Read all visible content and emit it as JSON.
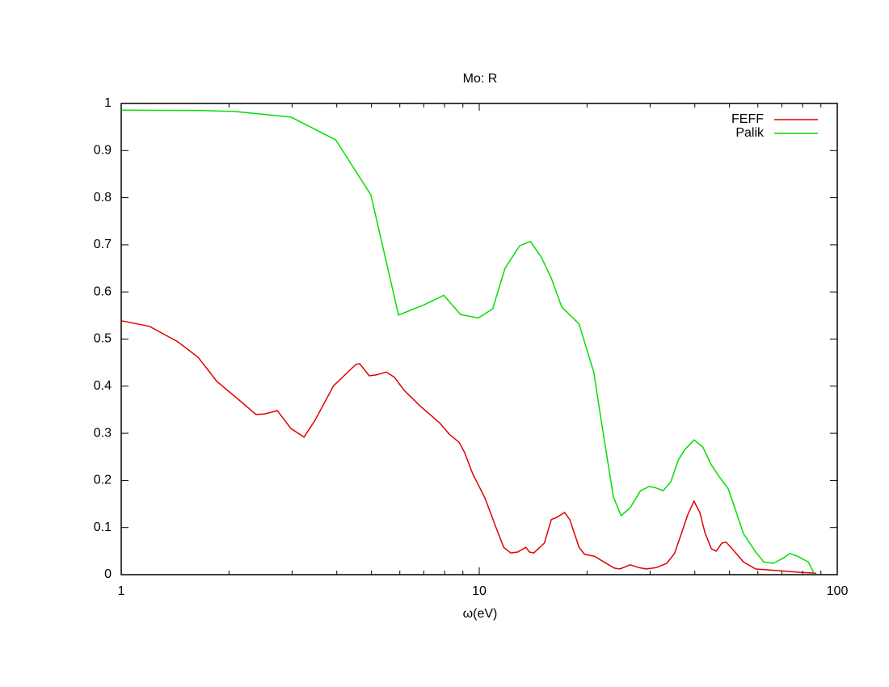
{
  "chart_data": {
    "type": "line",
    "title": "Mo: R",
    "x_label": "ω(eV)",
    "x_scale": "log",
    "xlim": [
      1,
      100
    ],
    "xticks": [
      1,
      10,
      100
    ],
    "xminorticks": [
      2,
      3,
      4,
      5,
      6,
      7,
      8,
      9,
      20,
      30,
      40,
      50,
      60,
      70,
      80,
      90
    ],
    "ylim": [
      0,
      1
    ],
    "yticks": [
      0,
      0.1,
      0.2,
      0.3,
      0.4,
      0.5,
      0.6,
      0.7,
      0.8,
      0.9,
      1
    ],
    "grid": false,
    "legend": "top-right",
    "series": [
      {
        "name": "FEFF",
        "color": "#e00000",
        "x": [
          1,
          1.2,
          1.44,
          1.64,
          1.85,
          2.07,
          2.38,
          2.51,
          2.73,
          2.98,
          3.24,
          3.48,
          3.92,
          4.52,
          4.63,
          4.93,
          5.17,
          5.5,
          5.79,
          6.17,
          6.84,
          7.75,
          8.25,
          8.78,
          9.1,
          9.59,
          10.37,
          11.1,
          11.7,
          12.25,
          12.8,
          13.5,
          13.8,
          14.2,
          15.2,
          15.9,
          16.5,
          17.3,
          17.9,
          19.0,
          19.7,
          21.0,
          22.4,
          23.8,
          24.7,
          26.4,
          27.9,
          29.3,
          31.2,
          33.4,
          35.1,
          36.7,
          38.2,
          39.8,
          41.3,
          42.7,
          44.5,
          45.9,
          47.6,
          48.9,
          50.6,
          54.7,
          59.2,
          67.3,
          78.7,
          87.3
        ],
        "values": [
          0.539,
          0.527,
          0.494,
          0.461,
          0.41,
          0.379,
          0.34,
          0.341,
          0.348,
          0.31,
          0.292,
          0.328,
          0.401,
          0.446,
          0.448,
          0.422,
          0.424,
          0.43,
          0.419,
          0.391,
          0.358,
          0.322,
          0.298,
          0.281,
          0.259,
          0.214,
          0.163,
          0.103,
          0.058,
          0.046,
          0.048,
          0.058,
          0.048,
          0.046,
          0.067,
          0.117,
          0.122,
          0.132,
          0.117,
          0.058,
          0.043,
          0.039,
          0.026,
          0.014,
          0.012,
          0.021,
          0.015,
          0.012,
          0.015,
          0.024,
          0.045,
          0.087,
          0.127,
          0.156,
          0.132,
          0.089,
          0.055,
          0.05,
          0.067,
          0.069,
          0.057,
          0.027,
          0.012,
          0.009,
          0.005,
          0.003
        ]
      },
      {
        "name": "Palik",
        "color": "#00e000",
        "x": [
          1,
          1.68,
          2.07,
          2.98,
          3.97,
          4.98,
          5.95,
          7.03,
          7.96,
          8.87,
          9.95,
          10.9,
          11.8,
          12.97,
          13.9,
          14.9,
          15.9,
          17.0,
          19.0,
          20.9,
          21.9,
          23.7,
          24.9,
          26.4,
          28.2,
          29.8,
          30.9,
          32.6,
          34.3,
          36.0,
          37.6,
          39.8,
          42.1,
          44.5,
          46.8,
          49.6,
          51.9,
          54.7,
          59.2,
          62.3,
          66.2,
          71.0,
          73.7,
          77.5,
          83.0,
          86.1
        ],
        "values": [
          0.986,
          0.985,
          0.983,
          0.971,
          0.923,
          0.806,
          0.551,
          0.573,
          0.593,
          0.552,
          0.545,
          0.564,
          0.65,
          0.698,
          0.707,
          0.674,
          0.629,
          0.568,
          0.532,
          0.429,
          0.328,
          0.165,
          0.125,
          0.142,
          0.178,
          0.187,
          0.185,
          0.178,
          0.197,
          0.244,
          0.266,
          0.286,
          0.271,
          0.233,
          0.208,
          0.182,
          0.139,
          0.087,
          0.048,
          0.027,
          0.024,
          0.036,
          0.045,
          0.039,
          0.027,
          0.003
        ]
      }
    ]
  }
}
